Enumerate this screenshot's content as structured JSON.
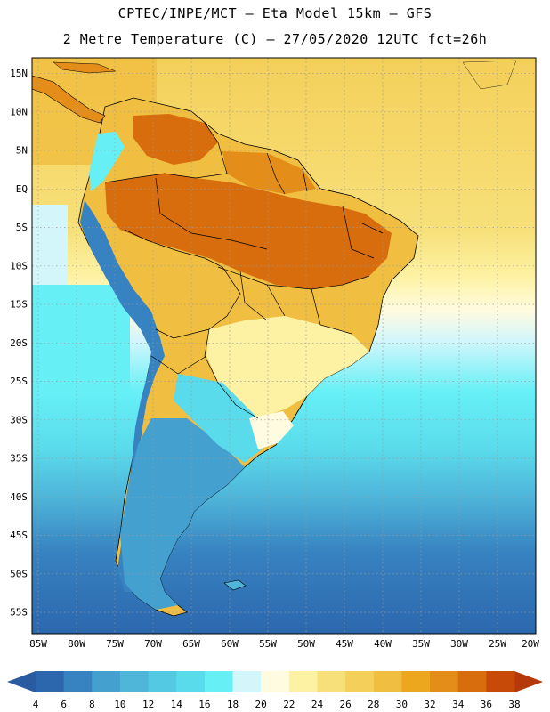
{
  "header": {
    "line1": "CPTEC/INPE/MCT  –  Eta Model 15km  –  GFS",
    "line2": "2 Metre Temperature (C) – 27/05/2020 12UTC fct=26h"
  },
  "axes": {
    "lat_labels": [
      "15N",
      "10N",
      "5N",
      "EQ",
      "5S",
      "10S",
      "15S",
      "20S",
      "25S",
      "30S",
      "35S",
      "40S",
      "45S",
      "50S",
      "55S"
    ],
    "lon_labels": [
      "85W",
      "80W",
      "75W",
      "70W",
      "65W",
      "60W",
      "55W",
      "50W",
      "45W",
      "40W",
      "35W",
      "30W",
      "25W",
      "20W"
    ]
  },
  "colorbar": {
    "ticks": [
      "4",
      "6",
      "8",
      "10",
      "12",
      "14",
      "16",
      "18",
      "20",
      "22",
      "24",
      "26",
      "28",
      "30",
      "32",
      "34",
      "36",
      "38"
    ],
    "colors": [
      "#2c67ad",
      "#3782c0",
      "#43a0cf",
      "#4fb6da",
      "#54c9e3",
      "#5adbeb",
      "#66f0f6",
      "#d3f6fb",
      "#fffbe0",
      "#fdf2a3",
      "#f7e07a",
      "#f4d05a",
      "#f0be40",
      "#eca71f",
      "#e48d18",
      "#d86d0d",
      "#c84a08"
    ],
    "low_color": "#2a5aa0",
    "high_color": "#b53808"
  }
}
